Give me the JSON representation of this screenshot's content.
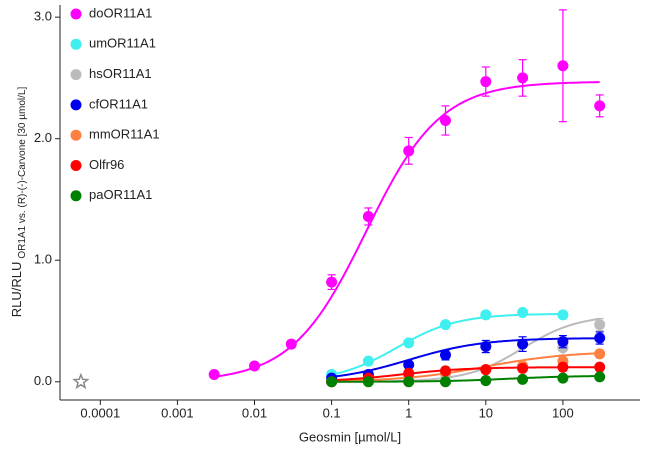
{
  "chart_data": {
    "type": "dose-response",
    "xlabel": "Geosmin [µmol/L]",
    "ylabel": "RLU/RLU",
    "ylabel_subscript": "OR1A1 vs. (R)-(-)-Carvone [30 µmol/L]",
    "log_x": true,
    "xlim": [
      3e-05,
      1000
    ],
    "xticks": [
      0.0001,
      0.001,
      0.01,
      0.1,
      1,
      10,
      100
    ],
    "ylim": [
      -0.15,
      3.1
    ],
    "yticks": [
      {
        "value": 0,
        "label": "0.0"
      },
      {
        "value": 1,
        "label": "1.0"
      },
      {
        "value": 2,
        "label": "2.0"
      },
      {
        "value": 3,
        "label": "3.0"
      }
    ],
    "x": [
      0.003,
      0.01,
      0.03,
      0.1,
      0.3,
      1,
      3,
      10,
      30,
      100,
      300
    ],
    "control": {
      "x": 5.6e-05,
      "y": 0,
      "color": "#888888"
    },
    "series": [
      {
        "name": "doOR11A1",
        "color": "#ff00ff",
        "values": [
          0.06,
          0.13,
          0.31,
          0.82,
          1.36,
          1.9,
          2.15,
          2.47,
          2.5,
          2.6,
          2.27
        ],
        "errors": [
          0.01,
          0.02,
          0.03,
          0.06,
          0.07,
          0.11,
          0.12,
          0.12,
          0.15,
          0.46,
          0.09
        ],
        "fit": {
          "bottom": 0,
          "top": 2.47,
          "ec50": 0.28,
          "hill": 0.9
        }
      },
      {
        "name": "umOR11A1",
        "color": "#40f0f0",
        "values": [
          null,
          null,
          null,
          0.06,
          0.17,
          0.32,
          0.47,
          0.55,
          0.57,
          0.55,
          null
        ],
        "errors": [
          null,
          null,
          null,
          0.01,
          0.02,
          0.02,
          0.02,
          0.03,
          0.02,
          0.02,
          null
        ],
        "fit": {
          "bottom": 0,
          "top": 0.56,
          "ec50": 0.7,
          "hill": 1.1
        }
      },
      {
        "name": "hsOR11A1",
        "color": "#bbbbbb",
        "values": [
          null,
          null,
          null,
          0.0,
          0.02,
          0.04,
          0.06,
          0.1,
          0.13,
          0.28,
          0.47
        ],
        "errors": [
          null,
          null,
          null,
          0.01,
          0.01,
          0.01,
          0.02,
          0.02,
          0.03,
          0.06,
          0.05
        ],
        "fit": {
          "bottom": 0,
          "top": 0.55,
          "ec50": 30,
          "hill": 1.2
        }
      },
      {
        "name": "cfOR11A1",
        "color": "#0000ee",
        "values": [
          null,
          null,
          null,
          0.03,
          0.06,
          0.14,
          0.22,
          0.29,
          0.31,
          0.33,
          0.36
        ],
        "errors": [
          null,
          null,
          null,
          0.01,
          0.01,
          0.02,
          0.04,
          0.05,
          0.06,
          0.05,
          0.05
        ],
        "fit": {
          "bottom": 0,
          "top": 0.36,
          "ec50": 1,
          "hill": 0.9
        }
      },
      {
        "name": "mmOR11A1",
        "color": "#ff8040",
        "values": [
          null,
          null,
          null,
          0.0,
          0.02,
          0.05,
          0.08,
          0.1,
          0.13,
          0.17,
          0.23
        ],
        "errors": [
          null,
          null,
          null,
          0.01,
          0.01,
          0.01,
          0.01,
          0.02,
          0.02,
          0.02,
          0.02
        ],
        "fit": {
          "bottom": 0,
          "top": 0.25,
          "ec50": 10,
          "hill": 0.8
        }
      },
      {
        "name": "Olfr96",
        "color": "#ff0000",
        "values": [
          null,
          null,
          null,
          0.0,
          0.03,
          0.07,
          0.09,
          0.1,
          0.11,
          0.12,
          0.12
        ],
        "errors": [
          null,
          null,
          null,
          0.01,
          0.01,
          0.01,
          0.01,
          0.01,
          0.01,
          0.01,
          0.01
        ],
        "fit": {
          "bottom": 0,
          "top": 0.12,
          "ec50": 0.8,
          "hill": 1
        }
      },
      {
        "name": "paOR11A1",
        "color": "#008000",
        "values": [
          null,
          null,
          null,
          0.0,
          0.0,
          0.0,
          0.0,
          0.01,
          0.02,
          0.03,
          0.04
        ],
        "errors": [
          null,
          null,
          null,
          0.01,
          0.01,
          0.01,
          0.01,
          0.01,
          0.01,
          0.01,
          0.01
        ],
        "fit": {
          "bottom": 0,
          "top": 0.05,
          "ec50": 20,
          "hill": 1
        }
      }
    ]
  }
}
